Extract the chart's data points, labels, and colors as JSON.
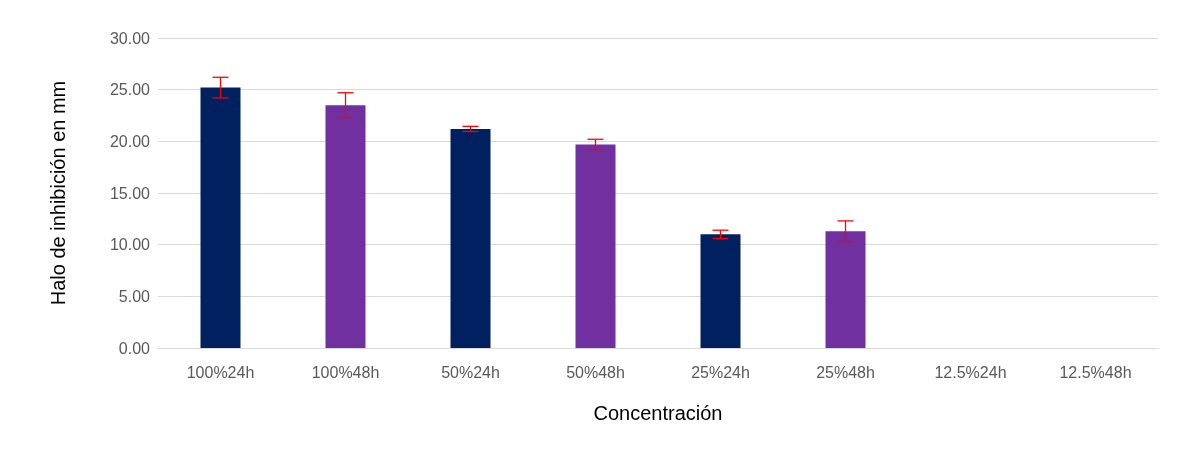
{
  "chart_data": {
    "type": "bar",
    "xlabel": "Concentración",
    "ylabel": "Halo de inhibición en mm",
    "categories": [
      "100%24h",
      "100%48h",
      "50%24h",
      "50%48h",
      "25%24h",
      "25%48h",
      "12.5%24h",
      "12.5%48h"
    ],
    "values": [
      25.2,
      23.5,
      21.2,
      19.7,
      11.0,
      11.3,
      0,
      0
    ],
    "colors": [
      "#002060",
      "#7030a0",
      "#002060",
      "#7030a0",
      "#002060",
      "#7030a0",
      "#002060",
      "#7030a0"
    ],
    "errors": [
      1.0,
      1.2,
      0.25,
      0.5,
      0.4,
      1.0,
      null,
      null
    ],
    "ylim": [
      0,
      30
    ],
    "yticks": [
      {
        "value": 0,
        "label": "0.00"
      },
      {
        "value": 5,
        "label": "5.00"
      },
      {
        "value": 10,
        "label": "10.00"
      },
      {
        "value": 15,
        "label": "15.00"
      },
      {
        "value": 20,
        "label": "20.00"
      },
      {
        "value": 25,
        "label": "25.00"
      },
      {
        "value": 30,
        "label": "30.00"
      }
    ],
    "grid": "y"
  }
}
